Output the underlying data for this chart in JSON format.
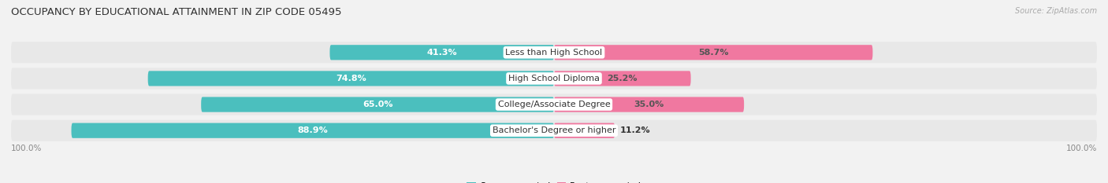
{
  "title": "OCCUPANCY BY EDUCATIONAL ATTAINMENT IN ZIP CODE 05495",
  "source": "Source: ZipAtlas.com",
  "categories": [
    "Less than High School",
    "High School Diploma",
    "College/Associate Degree",
    "Bachelor's Degree or higher"
  ],
  "owner_pct": [
    41.3,
    74.8,
    65.0,
    88.9
  ],
  "renter_pct": [
    58.7,
    25.2,
    35.0,
    11.2
  ],
  "owner_color": "#4BBFBE",
  "renter_color": "#F078A0",
  "bg_color": "#f2f2f2",
  "row_bg_color": "#e8e8e8",
  "title_fontsize": 9.5,
  "cat_fontsize": 8,
  "pct_fontsize": 8,
  "axis_label_fontsize": 7.5,
  "legend_fontsize": 8,
  "source_fontsize": 7,
  "left_axis_label": "100.0%",
  "right_axis_label": "100.0%"
}
